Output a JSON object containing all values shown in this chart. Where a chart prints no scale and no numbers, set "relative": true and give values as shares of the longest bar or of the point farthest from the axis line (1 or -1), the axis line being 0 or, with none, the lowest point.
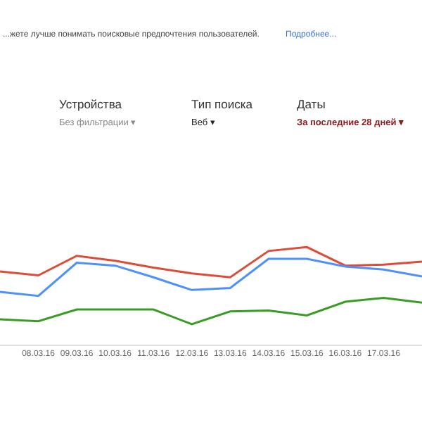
{
  "chart_data": {
    "type": "line",
    "relative": true,
    "marker": "none",
    "line_style": "solid",
    "annotations": [
      "...жете лучше понимать поисковые предпочтения пользователей.",
      "Подробнее...",
      "Устройства",
      "Без фильтрации ▾",
      "Тип поиска",
      "Веб ▾",
      "Даты",
      "За последние 28 дней ▾"
    ],
    "categories": [
      null,
      "08.03.16",
      "09.03.16",
      "10.03.16",
      "11.03.16",
      "12.03.16",
      "13.03.16",
      "14.03.16",
      "15.03.16",
      "16.03.16",
      "17.03.16",
      null
    ],
    "series": [
      {
        "color": "#dd4b39",
        "values": [
          0.75,
          0.71,
          0.91,
          0.86,
          0.79,
          0.73,
          0.69,
          0.96,
          1.0,
          0.81,
          0.82,
          0.85
        ]
      },
      {
        "color": "#4d90fe",
        "values": [
          0.54,
          0.5,
          0.84,
          0.81,
          0.69,
          0.56,
          0.58,
          0.88,
          0.88,
          0.8,
          0.77,
          0.7
        ]
      },
      {
        "color": "#3a9d23",
        "values": [
          0.26,
          0.24,
          0.36,
          0.36,
          0.36,
          0.21,
          0.34,
          0.35,
          0.3,
          0.44,
          0.48,
          0.43
        ]
      }
    ]
  }
}
